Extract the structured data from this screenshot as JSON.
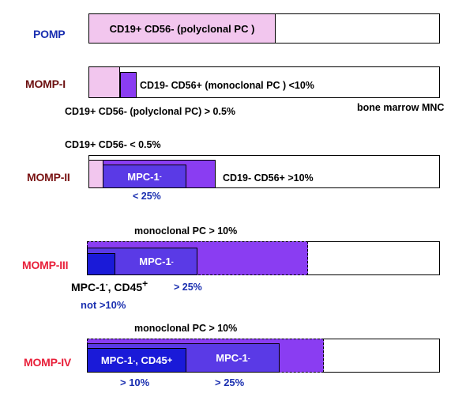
{
  "colors": {
    "pomp_label": "#1a2fb0",
    "momp_i_label": "#6b0f0f",
    "momp_ii_label": "#7a1414",
    "momp_iii_label": "#e8203a",
    "momp_iv_label": "#e8203a",
    "polyclonal_fill": "#f2c6ee",
    "monoclonal_fill": "#8a3df2",
    "mpc1_fill": "#5a3ae6",
    "cd45_fill": "#1a1ad8",
    "blue_text": "#1a2fb0"
  },
  "pomp": {
    "label": "POMP",
    "box_text": "CD19+ CD56- (polyclonal PC )"
  },
  "momp_i": {
    "label": "MOMP-I",
    "right_text": "CD19- CD56+ (monoclonal PC ) <10%",
    "below_text": "CD19+ CD56-  (polyclonal PC) > 0.5%",
    "bm_text": "bone marrow MNC"
  },
  "momp_ii": {
    "label": "MOMP-II",
    "above_text": "CD19+ CD56-  < 0.5%",
    "mpc_text": "MPC-1",
    "mpc_sup": "-",
    "right_text": "CD19- CD56+ >10%",
    "pct_text": "< 25%"
  },
  "momp_iii": {
    "label": "MOMP-III",
    "above_text": "monoclonal PC > 10%",
    "mpc_text": "MPC-1",
    "mpc_sup": "-",
    "cd45_text": "MPC-1",
    "cd45_sup1": "-",
    "cd45_mid": ", CD45",
    "cd45_sup2": "+",
    "pct_text": "> 25%",
    "not_text": "not >10%"
  },
  "momp_iv": {
    "label": "MOMP-IV",
    "above_text": "monoclonal PC > 10%",
    "cd45_text": "MPC-1",
    "cd45_sup1": "-",
    "cd45_mid": ", CD45",
    "cd45_sup2": "+",
    "mpc_text": "MPC-1",
    "mpc_sup": "-",
    "pct_left": "> 10%",
    "pct_right": "> 25%"
  }
}
